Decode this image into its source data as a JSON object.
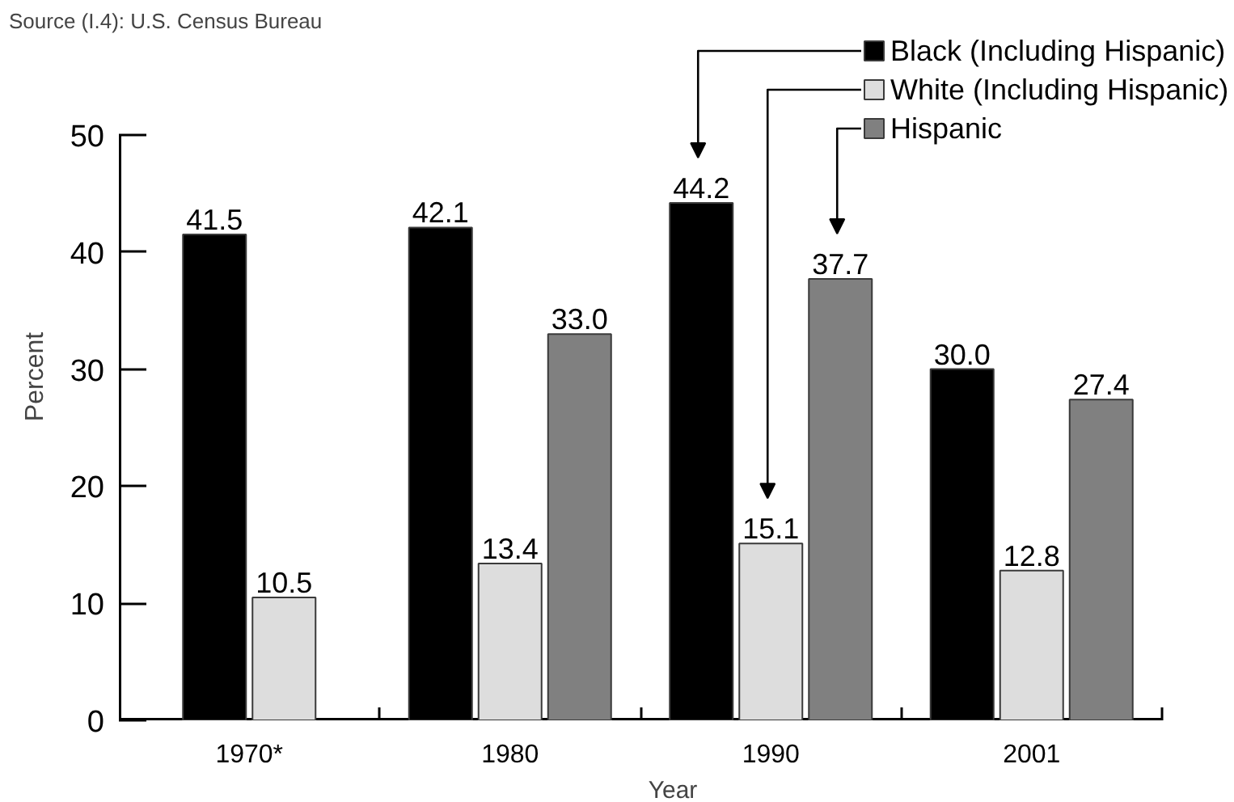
{
  "chart_data": {
    "type": "bar",
    "annotations": [
      "Source (I.4): U.S. Census Bureau"
    ],
    "xlabel": "Year",
    "ylabel": "Percent",
    "categories": [
      "1970*",
      "1980",
      "1990",
      "2001"
    ],
    "series": [
      {
        "name": "Black (Including Hispanic)",
        "color": "#000000",
        "values": [
          41.5,
          42.1,
          44.2,
          30.0
        ],
        "value_labels": [
          "41.5",
          "42.1",
          "44.2",
          "30.0"
        ]
      },
      {
        "name": "White (Including Hispanic)",
        "color": "#dddddd",
        "values": [
          10.5,
          13.4,
          15.1,
          12.8
        ],
        "value_labels": [
          "10.5",
          "13.4",
          "15.1",
          "12.8"
        ]
      },
      {
        "name": "Hispanic",
        "color": "#808080",
        "values": [
          null,
          33.0,
          37.7,
          27.4
        ],
        "value_labels": [
          null,
          "33.0",
          "37.7",
          "27.4"
        ]
      }
    ],
    "ylim": [
      0,
      50
    ],
    "yticks": [
      0,
      10,
      20,
      30,
      40,
      50
    ],
    "grid": false,
    "legend": "top right"
  }
}
